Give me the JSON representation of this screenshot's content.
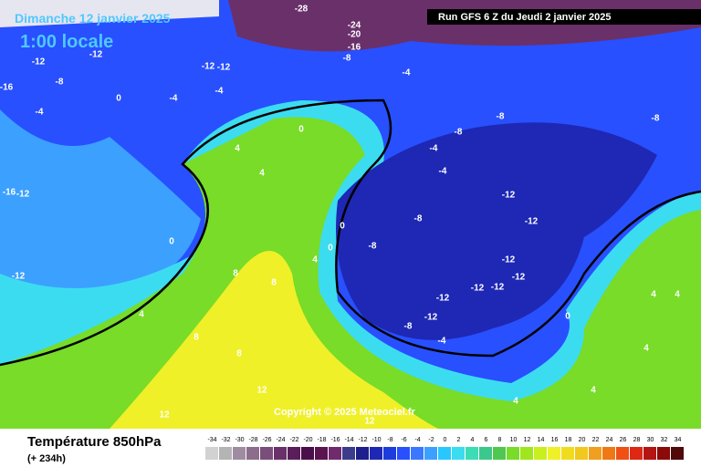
{
  "header": {
    "date": "Dimanche 12 janvier 2025",
    "time": "1:00 locale",
    "run": "Run GFS 6 Z du Jeudi 2 janvier 2025"
  },
  "map": {
    "copyright": "Copyright © 2025 Meteociel.fr",
    "contour_labels": [
      -12,
      -12,
      -8,
      -4,
      0,
      -4,
      -4,
      -12,
      -12,
      -4,
      -8,
      -8,
      -8,
      -4,
      -4,
      -12,
      -12,
      -8,
      -8,
      -12,
      -12,
      -12,
      -12,
      -12,
      -12,
      -8,
      -4,
      0,
      4,
      4,
      4,
      0,
      0,
      0,
      4,
      4,
      8,
      8,
      8,
      8,
      12,
      12,
      12,
      4,
      4,
      4,
      -16,
      -12,
      -12,
      -16,
      -24,
      -20,
      -16,
      -28,
      0,
      -8,
      4
    ]
  },
  "legend": {
    "title": "Température 850hPa",
    "lead_time": "(+ 234h)",
    "values": [
      -34,
      -32,
      -30,
      -28,
      -26,
      -24,
      -22,
      -20,
      -18,
      -16,
      -14,
      -12,
      -10,
      -8,
      -6,
      -4,
      -2,
      0,
      2,
      4,
      6,
      8,
      10,
      12,
      14,
      16,
      18,
      20,
      22,
      24,
      26,
      28,
      30,
      32,
      34
    ],
    "colors": [
      "#d2d2d2",
      "#b4b4b4",
      "#a08ca0",
      "#8c6e8c",
      "#7a4e7a",
      "#6a306a",
      "#5a1e5a",
      "#4a0e4a",
      "#5a1450",
      "#702a6e",
      "#3c3c8c",
      "#1e1e8c",
      "#1e28b4",
      "#1e3cdc",
      "#2850ff",
      "#3c78ff",
      "#3ca0ff",
      "#28c8ff",
      "#3cdcf0",
      "#3cdcb4",
      "#3cc88c",
      "#50c850",
      "#78dc28",
      "#a0e61e",
      "#c8f01e",
      "#f0f028",
      "#f0dc1e",
      "#f0c81e",
      "#f0a01e",
      "#f07814",
      "#f05014",
      "#dc2814",
      "#b41414",
      "#8c0a0a",
      "#500a0a"
    ]
  }
}
